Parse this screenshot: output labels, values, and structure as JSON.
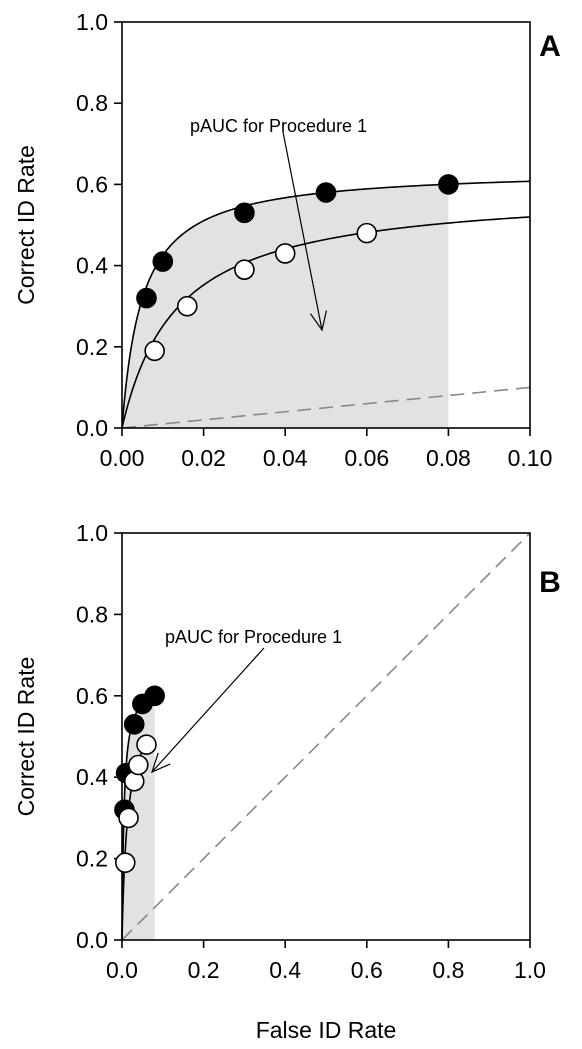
{
  "chart_data": [
    {
      "type": "scatter",
      "panel_label": "A",
      "xlabel": "",
      "ylabel": "Correct ID Rate",
      "xlim": [
        0,
        0.1
      ],
      "ylim": [
        0,
        1.0
      ],
      "x_ticks": [
        "0.00",
        "0.02",
        "0.04",
        "0.06",
        "0.08",
        "0.10"
      ],
      "y_ticks": [
        "0.0",
        "0.2",
        "0.4",
        "0.6",
        "0.8",
        "1.0"
      ],
      "annotation": "pAUC for Procedure 1",
      "shaded_region_x_max": 0.08,
      "series": [
        {
          "marker": "filled",
          "color": "#000000",
          "x": [
            0.006,
            0.01,
            0.03,
            0.05,
            0.08
          ],
          "y": [
            0.32,
            0.41,
            0.53,
            0.58,
            0.6
          ]
        },
        {
          "marker": "open",
          "color": "#000000",
          "x": [
            0.008,
            0.016,
            0.03,
            0.04,
            0.06
          ],
          "y": [
            0.19,
            0.3,
            0.39,
            0.43,
            0.48
          ]
        }
      ],
      "chance_line_color": "#888888",
      "shade_color": "#e2e2e2"
    },
    {
      "type": "scatter",
      "panel_label": "B",
      "xlabel": "False ID Rate",
      "ylabel": "Correct ID Rate",
      "xlim": [
        0,
        1.0
      ],
      "ylim": [
        0,
        1.0
      ],
      "x_ticks": [
        "0.0",
        "0.2",
        "0.4",
        "0.6",
        "0.8",
        "1.0"
      ],
      "y_ticks": [
        "0.0",
        "0.2",
        "0.4",
        "0.6",
        "0.8",
        "1.0"
      ],
      "annotation": "pAUC for Procedure 1",
      "shaded_region_x_max": 0.08,
      "series": [
        {
          "marker": "filled",
          "color": "#000000",
          "x": [
            0.006,
            0.01,
            0.03,
            0.05,
            0.08
          ],
          "y": [
            0.32,
            0.41,
            0.53,
            0.58,
            0.6
          ]
        },
        {
          "marker": "open",
          "color": "#000000",
          "x": [
            0.008,
            0.016,
            0.03,
            0.04,
            0.06
          ],
          "y": [
            0.19,
            0.3,
            0.39,
            0.43,
            0.48
          ]
        }
      ],
      "chance_line_color": "#888888",
      "shade_color": "#e2e2e2"
    }
  ]
}
